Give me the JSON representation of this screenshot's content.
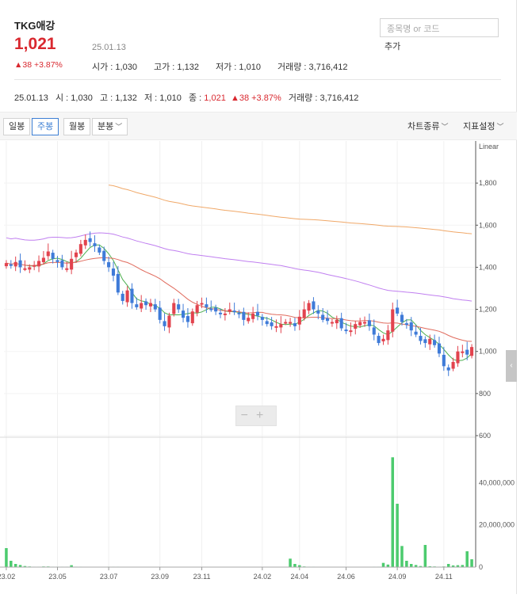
{
  "stock": {
    "name": "TKG애강",
    "price": "1,021",
    "date": "25.01.13",
    "change": "▲38 +3.87%",
    "open_label": "시가 : 1,030",
    "high_label": "고가 : 1,132",
    "low_label": "저가 : 1,010",
    "volume_label": "거래량 : 3,716,412"
  },
  "search": {
    "placeholder": "종목명 or 코드",
    "add_label": "추가"
  },
  "ohlc": {
    "date": "25.01.13",
    "open": "시 : 1,030",
    "high": "고 : 1,132",
    "low": "저 : 1,010",
    "close_label": "종 : ",
    "close_value": "1,021",
    "change": "▲38 +3.87%",
    "volume": "거래량 : 3,716,412"
  },
  "toolbar": {
    "daily": "일봉",
    "weekly": "주봉",
    "monthly": "월봉",
    "minute": "분봉",
    "chart_type": "차트종류",
    "indicator": "지표설정"
  },
  "colors": {
    "up": "#e2434e",
    "down": "#3f7bd8",
    "vol": "#4ccb6e",
    "ma5": "#4caf50",
    "ma20": "#e06b5d",
    "ma60": "#c07ff0",
    "ma120": "#f0a868",
    "accent": "#3d7fd4"
  },
  "chart_data": {
    "type": "candlestick",
    "scale": "Linear",
    "x_ticks": [
      "23.02",
      "23.05",
      "23.07",
      "23.09",
      "23.11",
      "24.02",
      "24.04",
      "24.06",
      "24.09",
      "24.11"
    ],
    "x_tick_index": [
      0,
      11,
      22,
      33,
      42,
      55,
      63,
      73,
      84,
      94
    ],
    "price_ticks": [
      "1,800",
      "1,600",
      "1,400",
      "1,200",
      "1,000",
      "800",
      "600"
    ],
    "price_tick_values": [
      1800,
      1600,
      1400,
      1200,
      1000,
      800,
      600
    ],
    "ylim": [
      600,
      2000
    ],
    "volume_ticks": [
      "40,000,000",
      "20,000,000",
      "0"
    ],
    "volume_tick_values": [
      40000000,
      20000000,
      0
    ],
    "volume_ylim": [
      0,
      60000000
    ],
    "closes": [
      1420,
      1410,
      1425,
      1400,
      1395,
      1400,
      1410,
      1430,
      1445,
      1475,
      1440,
      1425,
      1400,
      1395,
      1440,
      1470,
      1510,
      1530,
      1520,
      1500,
      1470,
      1430,
      1400,
      1360,
      1280,
      1240,
      1290,
      1230,
      1210,
      1230,
      1220,
      1230,
      1200,
      1150,
      1120,
      1170,
      1230,
      1200,
      1160,
      1140,
      1190,
      1220,
      1230,
      1210,
      1200,
      1190,
      1180,
      1180,
      1200,
      1190,
      1180,
      1150,
      1160,
      1180,
      1170,
      1150,
      1130,
      1120,
      1120,
      1130,
      1140,
      1140,
      1120,
      1165,
      1200,
      1230,
      1200,
      1180,
      1150,
      1145,
      1140,
      1150,
      1110,
      1100,
      1100,
      1130,
      1140,
      1140,
      1120,
      1080,
      1040,
      1060,
      1100,
      1200,
      1180,
      1140,
      1130,
      1100,
      1080,
      1050,
      1040,
      1060,
      1030,
      990,
      930,
      910,
      950,
      1000,
      1000,
      985,
      1021
    ],
    "volumes": [
      9000000,
      3000000,
      1500000,
      1000000,
      500000,
      300000,
      200000,
      200000,
      300000,
      300000,
      200000,
      200000,
      200000,
      200000,
      900000,
      200000,
      200000,
      150000,
      150000,
      150000,
      150000,
      150000,
      200000,
      200000,
      200000,
      150000,
      150000,
      150000,
      150000,
      150000,
      150000,
      150000,
      150000,
      150000,
      150000,
      150000,
      150000,
      150000,
      150000,
      150000,
      150000,
      150000,
      150000,
      150000,
      150000,
      150000,
      150000,
      150000,
      150000,
      150000,
      150000,
      150000,
      150000,
      150000,
      150000,
      150000,
      150000,
      150000,
      150000,
      150000,
      150000,
      4000000,
      1500000,
      900000,
      300000,
      200000,
      200000,
      150000,
      150000,
      150000,
      150000,
      150000,
      150000,
      150000,
      150000,
      150000,
      150000,
      150000,
      150000,
      200000,
      200000,
      2000000,
      1200000,
      52000000,
      30000000,
      10000000,
      3000000,
      1500000,
      1000000,
      500000,
      10500000,
      400000,
      300000,
      200000,
      300000,
      1500000,
      800000,
      900000,
      1000000,
      7500000,
      3716412
    ]
  }
}
